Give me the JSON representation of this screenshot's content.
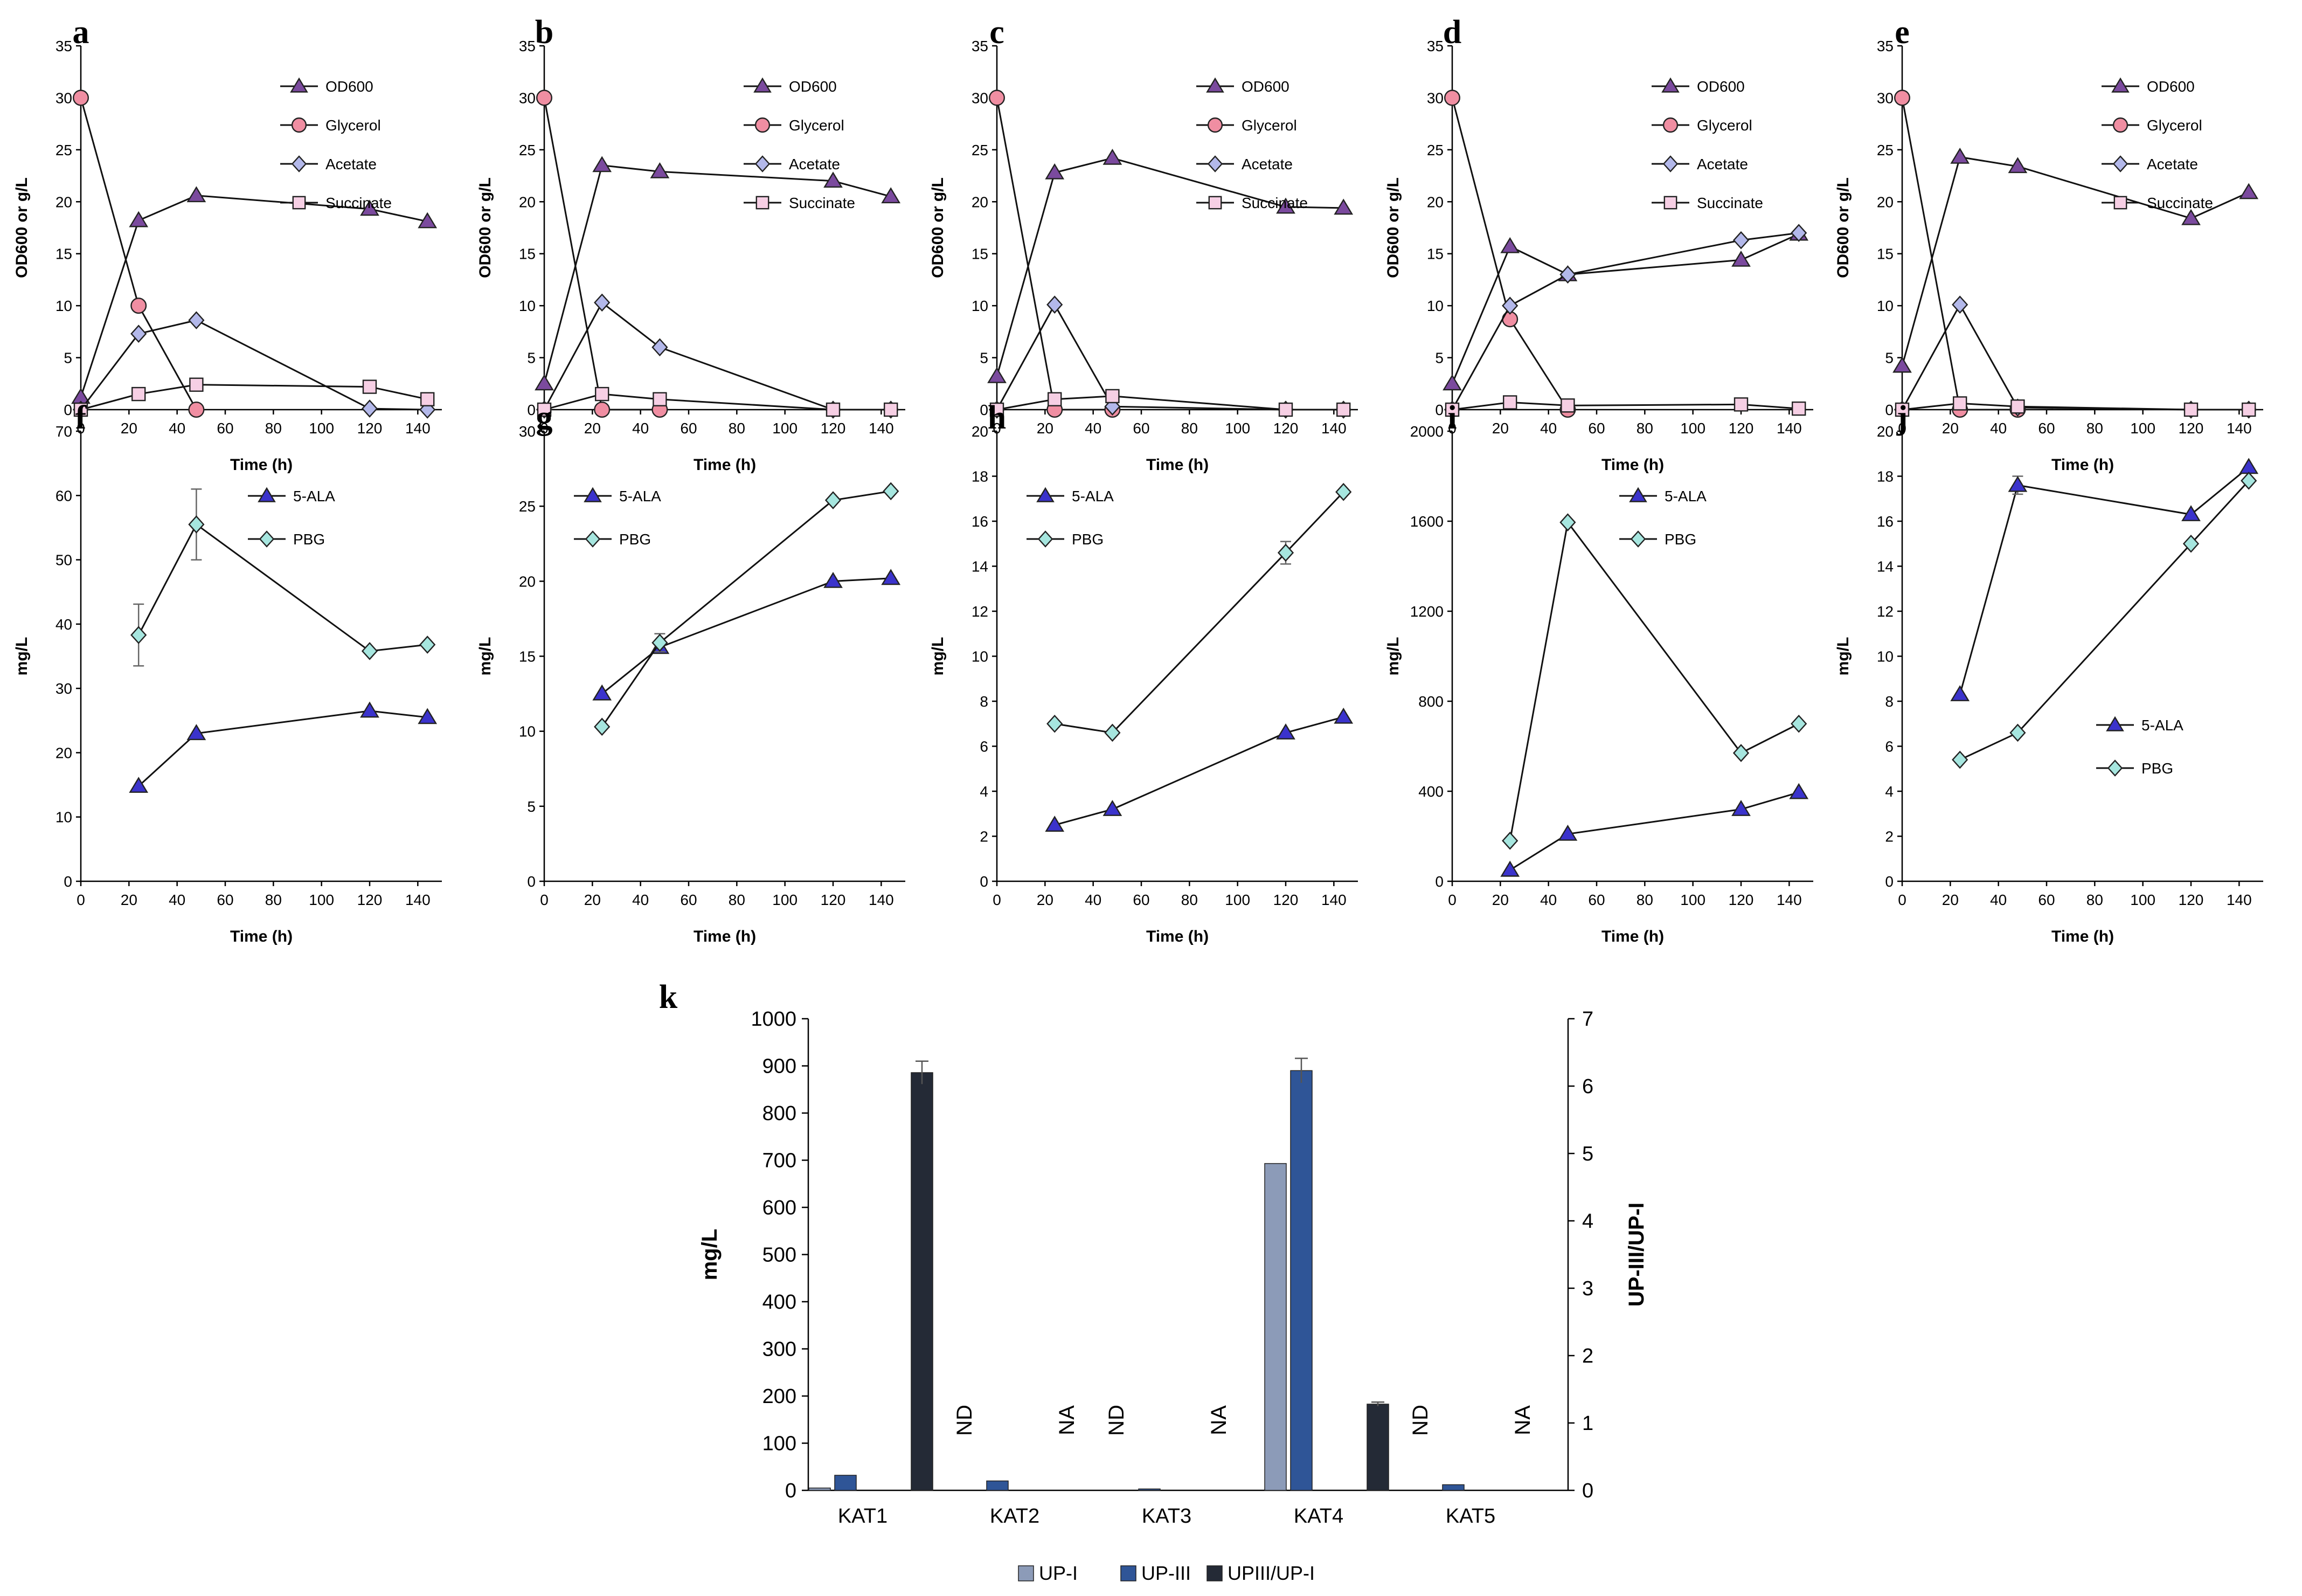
{
  "colors": {
    "od600": "#7b4a9e",
    "glycerol": "#f08ea2",
    "acetate": "#b3b8ea",
    "succinate": "#f6cfe4",
    "ala": "#3b33cc",
    "pbg": "#a6e6df",
    "up1": "#8c9bb8",
    "up3": "#2f5597",
    "ratio": "#242a36"
  },
  "chart_data": [
    {
      "id": "a",
      "type": "line",
      "letter": "a",
      "xlabel": "Time (h)",
      "ylabel": "OD600 or g/L",
      "xlim": [
        0,
        150
      ],
      "ylim": [
        0,
        35
      ],
      "xticks": [
        "0",
        "20",
        "40",
        "60",
        "80",
        "100",
        "120",
        "140"
      ],
      "yticks": [
        "0",
        "5",
        "10",
        "15",
        "20",
        "25",
        "30",
        "35"
      ],
      "legend_position": "top-right",
      "series": [
        {
          "name": "OD600",
          "marker": "triangle",
          "color": "od600",
          "x": [
            0,
            24,
            48,
            120,
            144
          ],
          "y": [
            1.2,
            18.2,
            20.6,
            19.3,
            18.1
          ]
        },
        {
          "name": "Glycerol",
          "marker": "circle",
          "color": "glycerol",
          "x": [
            0,
            24,
            48
          ],
          "y": [
            30,
            10,
            0
          ]
        },
        {
          "name": "Acetate",
          "marker": "diamond",
          "color": "acetate",
          "x": [
            0,
            24,
            48,
            120,
            144
          ],
          "y": [
            0,
            7.3,
            8.6,
            0.1,
            0
          ]
        },
        {
          "name": "Succinate",
          "marker": "square",
          "color": "succinate",
          "x": [
            0,
            24,
            48,
            120,
            144
          ],
          "y": [
            0,
            1.5,
            2.4,
            2.2,
            1.0
          ]
        }
      ]
    },
    {
      "id": "b",
      "type": "line",
      "letter": "b",
      "xlabel": "Time (h)",
      "ylabel": "OD600 or g/L",
      "xlim": [
        0,
        150
      ],
      "ylim": [
        0,
        35
      ],
      "xticks": [
        "0",
        "20",
        "40",
        "60",
        "80",
        "100",
        "120",
        "140"
      ],
      "yticks": [
        "0",
        "5",
        "10",
        "15",
        "20",
        "25",
        "30",
        "35"
      ],
      "legend_position": "top-right",
      "series": [
        {
          "name": "OD600",
          "marker": "triangle",
          "color": "od600",
          "x": [
            0,
            24,
            48,
            120,
            144
          ],
          "y": [
            2.5,
            23.5,
            22.9,
            22.0,
            20.5
          ]
        },
        {
          "name": "Glycerol",
          "marker": "circle",
          "color": "glycerol",
          "x": [
            0,
            24,
            48
          ],
          "y": [
            30,
            0,
            0
          ]
        },
        {
          "name": "Acetate",
          "marker": "diamond",
          "color": "acetate",
          "x": [
            0,
            24,
            48,
            120,
            144
          ],
          "y": [
            0,
            10.3,
            6.0,
            0,
            0
          ]
        },
        {
          "name": "Succinate",
          "marker": "square",
          "color": "succinate",
          "x": [
            0,
            24,
            48,
            120,
            144
          ],
          "y": [
            0,
            1.5,
            1.0,
            0,
            0
          ]
        }
      ]
    },
    {
      "id": "c",
      "type": "line",
      "letter": "c",
      "xlabel": "Time (h)",
      "ylabel": "OD600 or g/L",
      "xlim": [
        0,
        150
      ],
      "ylim": [
        0,
        35
      ],
      "xticks": [
        "0",
        "20",
        "40",
        "60",
        "80",
        "100",
        "120",
        "140"
      ],
      "yticks": [
        "0",
        "5",
        "10",
        "15",
        "20",
        "25",
        "30",
        "35"
      ],
      "legend_position": "top-right",
      "series": [
        {
          "name": "OD600",
          "marker": "triangle",
          "color": "od600",
          "x": [
            0,
            24,
            48,
            120,
            144
          ],
          "y": [
            3.2,
            22.8,
            24.2,
            19.5,
            19.4
          ]
        },
        {
          "name": "Glycerol",
          "marker": "circle",
          "color": "glycerol",
          "x": [
            0,
            24,
            48
          ],
          "y": [
            30,
            0,
            0
          ]
        },
        {
          "name": "Acetate",
          "marker": "diamond",
          "color": "acetate",
          "x": [
            0,
            24,
            48,
            120,
            144
          ],
          "y": [
            0,
            10.1,
            0.3,
            0,
            0
          ]
        },
        {
          "name": "Succinate",
          "marker": "square",
          "color": "succinate",
          "x": [
            0,
            24,
            48,
            120,
            144
          ],
          "y": [
            0,
            1.0,
            1.3,
            0,
            0
          ]
        }
      ]
    },
    {
      "id": "d",
      "type": "line",
      "letter": "d",
      "xlabel": "Time (h)",
      "ylabel": "OD600 or g/L",
      "xlim": [
        0,
        150
      ],
      "ylim": [
        0,
        35
      ],
      "xticks": [
        "0",
        "20",
        "40",
        "60",
        "80",
        "100",
        "120",
        "140"
      ],
      "yticks": [
        "0",
        "5",
        "10",
        "15",
        "20",
        "25",
        "30",
        "35"
      ],
      "legend_position": "top-right",
      "series": [
        {
          "name": "OD600",
          "marker": "triangle",
          "color": "od600",
          "x": [
            0,
            24,
            48,
            120,
            144
          ],
          "y": [
            2.5,
            15.7,
            13.0,
            14.4,
            16.9
          ]
        },
        {
          "name": "Glycerol",
          "marker": "circle",
          "color": "glycerol",
          "x": [
            0,
            24,
            48
          ],
          "y": [
            30,
            8.7,
            0
          ]
        },
        {
          "name": "Acetate",
          "marker": "diamond",
          "color": "acetate",
          "x": [
            0,
            24,
            48,
            120,
            144
          ],
          "y": [
            0,
            10.0,
            13.0,
            16.3,
            17.0
          ]
        },
        {
          "name": "Succinate",
          "marker": "square",
          "color": "succinate",
          "x": [
            0,
            24,
            48,
            120,
            144
          ],
          "y": [
            0,
            0.7,
            0.4,
            0.5,
            0.1
          ]
        }
      ]
    },
    {
      "id": "e",
      "type": "line",
      "letter": "e",
      "xlabel": "Time (h)",
      "ylabel": "OD600 or g/L",
      "xlim": [
        0,
        150
      ],
      "ylim": [
        0,
        35
      ],
      "xticks": [
        "0",
        "20",
        "40",
        "60",
        "80",
        "100",
        "120",
        "140"
      ],
      "yticks": [
        "0",
        "5",
        "10",
        "15",
        "20",
        "25",
        "30",
        "35"
      ],
      "legend_position": "top-right",
      "series": [
        {
          "name": "OD600",
          "marker": "triangle",
          "color": "od600",
          "x": [
            0,
            24,
            48,
            120,
            144
          ],
          "y": [
            4.2,
            24.3,
            23.4,
            18.4,
            20.9
          ]
        },
        {
          "name": "Glycerol",
          "marker": "circle",
          "color": "glycerol",
          "x": [
            0,
            24,
            48
          ],
          "y": [
            30,
            0,
            0
          ]
        },
        {
          "name": "Acetate",
          "marker": "diamond",
          "color": "acetate",
          "x": [
            0,
            24,
            48,
            120,
            144
          ],
          "y": [
            0,
            10.1,
            0.2,
            0,
            0
          ]
        },
        {
          "name": "Succinate",
          "marker": "square",
          "color": "succinate",
          "x": [
            0,
            24,
            48,
            120,
            144
          ],
          "y": [
            0,
            0.6,
            0.3,
            0,
            0
          ]
        }
      ]
    },
    {
      "id": "f",
      "type": "line",
      "letter": "f",
      "xlabel": "Time (h)",
      "ylabel": "mg/L",
      "xlim": [
        0,
        150
      ],
      "ylim": [
        0,
        70
      ],
      "xticks": [
        "0",
        "20",
        "40",
        "60",
        "80",
        "100",
        "120",
        "140"
      ],
      "yticks": [
        "0",
        "10",
        "20",
        "30",
        "40",
        "50",
        "60",
        "70"
      ],
      "legend_position": "upper-right",
      "series": [
        {
          "name": "5-ALA",
          "marker": "triangle",
          "color": "ala",
          "x": [
            24,
            48,
            120,
            144
          ],
          "y": [
            14.8,
            23.0,
            26.5,
            25.5
          ]
        },
        {
          "name": "PBG",
          "marker": "diamond",
          "color": "pbg",
          "x": [
            24,
            48,
            120,
            144
          ],
          "y": [
            38.3,
            55.5,
            35.8,
            36.8
          ],
          "err": [
            4.8,
            5.5,
            0,
            0
          ]
        }
      ]
    },
    {
      "id": "g",
      "type": "line",
      "letter": "g",
      "xlabel": "Time (h)",
      "ylabel": "mg/L",
      "xlim": [
        0,
        150
      ],
      "ylim": [
        0,
        30
      ],
      "xticks": [
        "0",
        "20",
        "40",
        "60",
        "80",
        "100",
        "120",
        "140"
      ],
      "yticks": [
        "0",
        "5",
        "10",
        "15",
        "20",
        "25",
        "30"
      ],
      "legend_position": "upper-left",
      "series": [
        {
          "name": "5-ALA",
          "marker": "triangle",
          "color": "ala",
          "x": [
            24,
            48,
            120,
            144
          ],
          "y": [
            12.5,
            15.6,
            20.0,
            20.2
          ]
        },
        {
          "name": "PBG",
          "marker": "diamond",
          "color": "pbg",
          "x": [
            24,
            48,
            120,
            144
          ],
          "y": [
            10.3,
            15.9,
            25.4,
            26.0
          ],
          "err": [
            0,
            0.6,
            0,
            0
          ]
        }
      ]
    },
    {
      "id": "h",
      "type": "line",
      "letter": "h",
      "xlabel": "Time (h)",
      "ylabel": "mg/L",
      "xlim": [
        0,
        150
      ],
      "ylim": [
        0,
        20
      ],
      "xticks": [
        "0",
        "20",
        "40",
        "60",
        "80",
        "100",
        "120",
        "140"
      ],
      "yticks": [
        "0",
        "2",
        "4",
        "6",
        "8",
        "10",
        "12",
        "14",
        "16",
        "18",
        "20"
      ],
      "legend_position": "upper-left",
      "series": [
        {
          "name": "5-ALA",
          "marker": "triangle",
          "color": "ala",
          "x": [
            24,
            48,
            120,
            144
          ],
          "y": [
            2.5,
            3.2,
            6.6,
            7.3
          ]
        },
        {
          "name": "PBG",
          "marker": "diamond",
          "color": "pbg",
          "x": [
            24,
            48,
            120,
            144
          ],
          "y": [
            7.0,
            6.6,
            14.6,
            17.3
          ],
          "err": [
            0,
            0,
            0.5,
            0
          ]
        }
      ]
    },
    {
      "id": "i",
      "type": "line",
      "letter": "i",
      "xlabel": "Time (h)",
      "ylabel": "mg/L",
      "xlim": [
        0,
        150
      ],
      "ylim": [
        0,
        2000
      ],
      "xticks": [
        "0",
        "20",
        "40",
        "60",
        "80",
        "100",
        "120",
        "140"
      ],
      "yticks": [
        "0",
        "400",
        "800",
        "1200",
        "1600",
        "2000"
      ],
      "legend_position": "upper-right",
      "series": [
        {
          "name": "5-ALA",
          "marker": "triangle",
          "color": "ala",
          "x": [
            24,
            48,
            120,
            144
          ],
          "y": [
            50,
            210,
            320,
            395
          ]
        },
        {
          "name": "PBG",
          "marker": "diamond",
          "color": "pbg",
          "x": [
            24,
            48,
            120,
            144
          ],
          "y": [
            180,
            1595,
            570,
            700
          ]
        }
      ]
    },
    {
      "id": "j",
      "type": "line",
      "letter": "j",
      "xlabel": "Time (h)",
      "ylabel": "mg/L",
      "xlim": [
        0,
        150
      ],
      "ylim": [
        0,
        20
      ],
      "xticks": [
        "0",
        "20",
        "40",
        "60",
        "80",
        "100",
        "120",
        "140"
      ],
      "yticks": [
        "0",
        "2",
        "4",
        "6",
        "8",
        "10",
        "12",
        "14",
        "16",
        "18",
        "20"
      ],
      "legend_position": "lower-right",
      "series": [
        {
          "name": "5-ALA",
          "marker": "triangle",
          "color": "ala",
          "x": [
            24,
            48,
            120,
            144
          ],
          "y": [
            8.3,
            17.6,
            16.3,
            18.4
          ],
          "err": [
            0,
            0.4,
            0,
            0
          ]
        },
        {
          "name": "PBG",
          "marker": "diamond",
          "color": "pbg",
          "x": [
            24,
            48,
            120,
            144
          ],
          "y": [
            5.4,
            6.6,
            15.0,
            17.8
          ]
        }
      ]
    },
    {
      "id": "k",
      "type": "bar",
      "letter": "k",
      "categories": [
        "KAT1",
        "KAT2",
        "KAT3",
        "KAT4",
        "KAT5"
      ],
      "ylabel": "mg/L",
      "y2label": "UP-III/UP-I",
      "ylim": [
        0,
        1000
      ],
      "y2lim": [
        0,
        7
      ],
      "yticks": [
        "0",
        "100",
        "200",
        "300",
        "400",
        "500",
        "600",
        "700",
        "800",
        "900",
        "1000"
      ],
      "y2ticks": [
        "0",
        "1",
        "2",
        "3",
        "4",
        "5",
        "6",
        "7"
      ],
      "legend_position": "bottom",
      "series": [
        {
          "name": "UP-I",
          "color": "up1",
          "axis": "left",
          "values": [
            5,
            0,
            0,
            693,
            0
          ],
          "err": [
            0,
            0,
            0,
            0,
            0
          ]
        },
        {
          "name": "UP-III",
          "color": "up3",
          "axis": "left",
          "values": [
            32,
            20,
            3,
            890,
            12
          ],
          "err": [
            0,
            0,
            0,
            26,
            0
          ]
        },
        {
          "name": "UPIII/UP-I",
          "color": "ratio",
          "axis": "right",
          "values": [
            6.2,
            0,
            0,
            1.28,
            0
          ],
          "err": [
            0.17,
            0,
            0,
            0.03,
            0
          ]
        }
      ],
      "annotations": [
        {
          "category": "KAT2",
          "up1_text": "ND",
          "ratio_text": "NA"
        },
        {
          "category": "KAT3",
          "up1_text": "ND",
          "ratio_text": "NA"
        },
        {
          "category": "KAT5",
          "up1_text": "ND",
          "ratio_text": "NA"
        }
      ]
    }
  ]
}
